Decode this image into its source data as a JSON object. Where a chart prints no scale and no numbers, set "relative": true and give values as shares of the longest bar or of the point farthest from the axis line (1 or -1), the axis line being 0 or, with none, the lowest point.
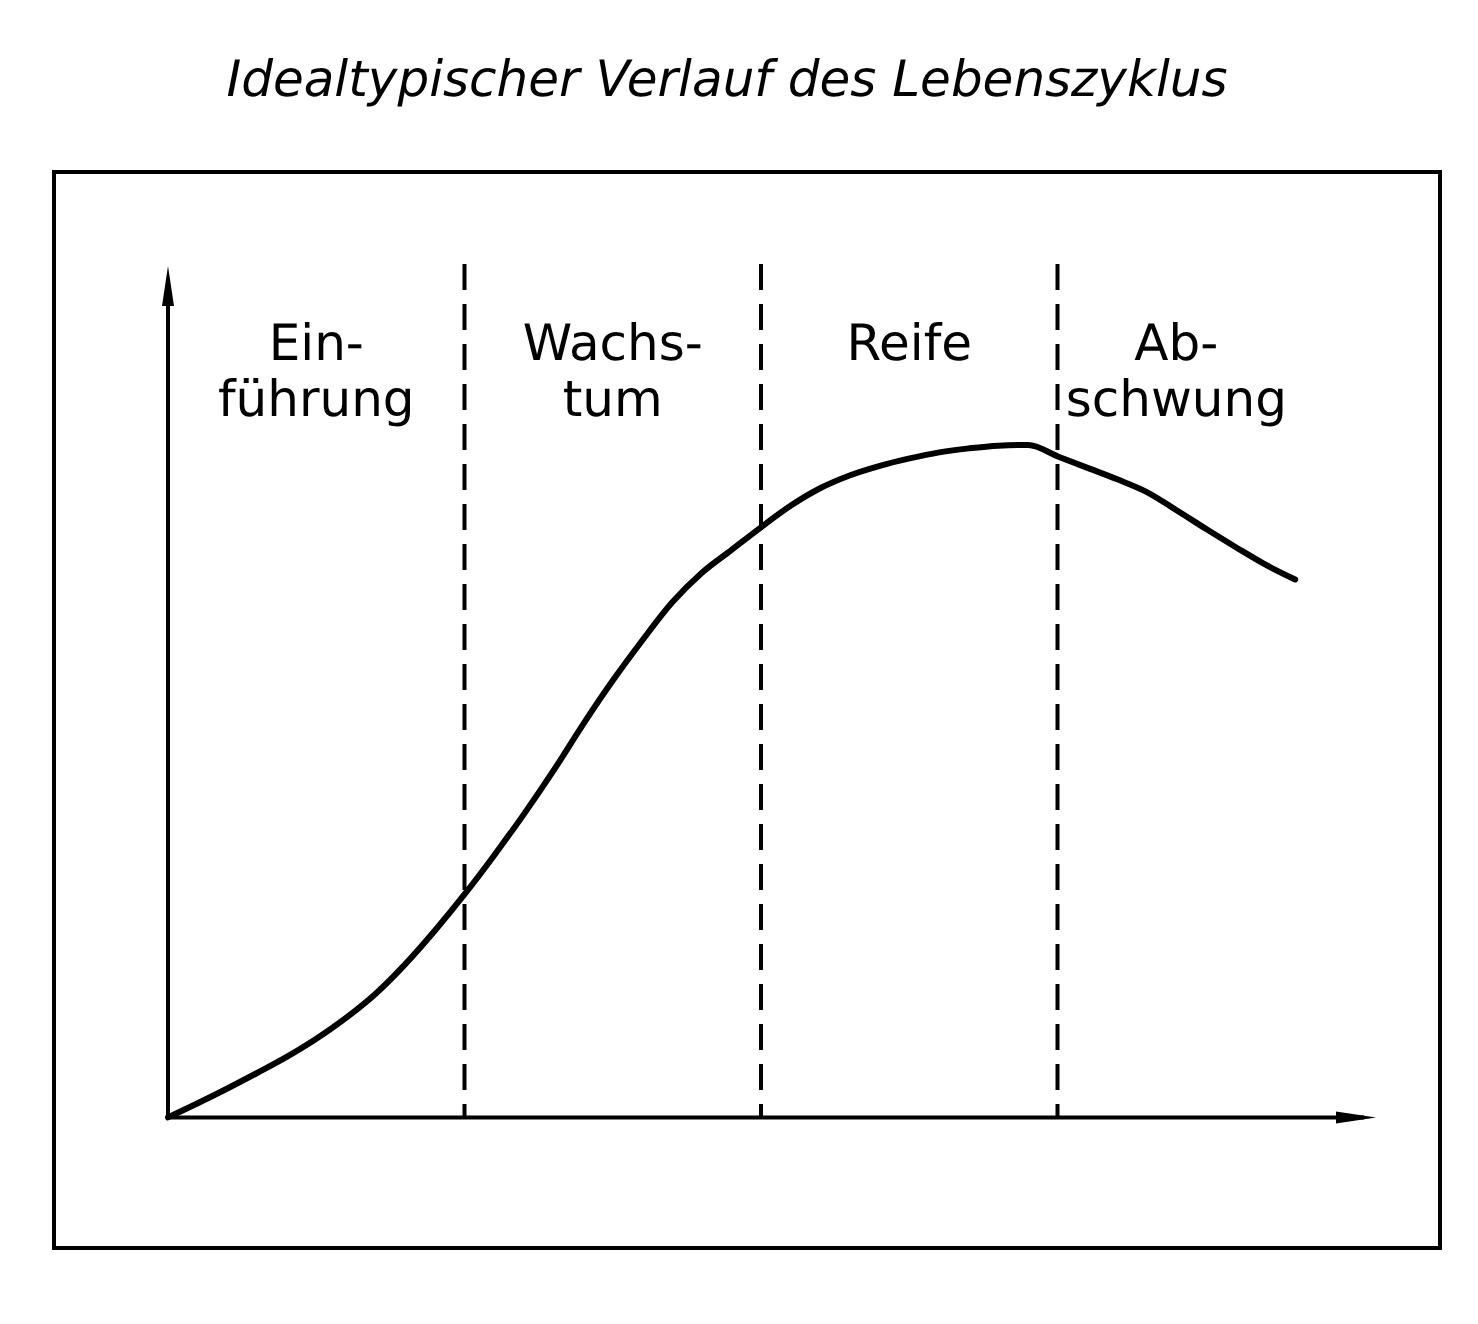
{
  "chart_data": {
    "type": "line",
    "title": "Idealtypischer Verlauf des Lebenszyklus",
    "relative": true,
    "grid": "x",
    "categories": [
      null,
      null,
      null,
      null,
      null,
      null,
      null,
      null,
      null,
      null,
      null,
      null,
      null,
      null,
      null,
      null,
      null,
      null,
      null,
      null,
      null,
      null,
      null,
      null,
      null,
      null,
      null,
      null,
      null,
      null,
      null,
      null,
      null,
      null,
      null,
      null,
      null,
      null,
      null
    ],
    "series": [
      {
        "color": "#000000",
        "values": [
          0,
          0.021,
          0.043,
          0.066,
          0.09,
          0.117,
          0.148,
          0.184,
          0.228,
          0.278,
          0.332,
          0.39,
          0.451,
          0.516,
          0.585,
          0.65,
          0.71,
          0.766,
          0.81,
          0.844,
          0.878,
          0.91,
          0.936,
          0.955,
          0.969,
          0.98,
          0.989,
          0.995,
          0.999,
          1,
          0.983,
          0.966,
          0.949,
          0.93,
          0.903,
          0.875,
          0.848,
          0.822,
          0.8
        ]
      }
    ],
    "annotations": [
      "Ein-\nführung",
      "Wachs-\ntum",
      "Reife",
      "Ab-\nschwung"
    ]
  }
}
